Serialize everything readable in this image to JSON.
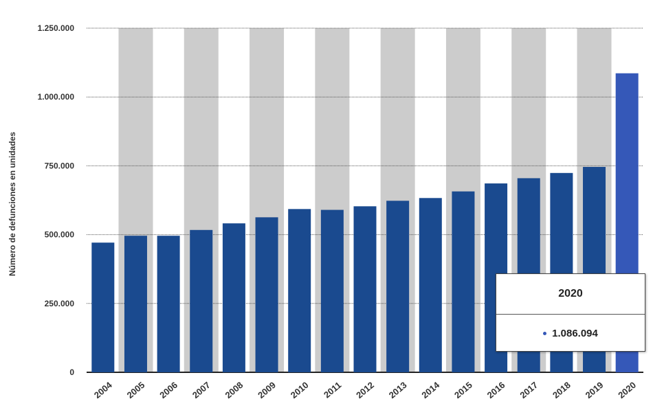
{
  "chart_data": {
    "type": "bar",
    "categories": [
      "2004",
      "2005",
      "2006",
      "2007",
      "2008",
      "2009",
      "2010",
      "2011",
      "2012",
      "2013",
      "2014",
      "2015",
      "2016",
      "2017",
      "2018",
      "2019",
      "2020"
    ],
    "series": [
      {
        "values": [
          471000,
          496000,
          496000,
          517000,
          541000,
          563000,
          593000,
          590000,
          603000,
          623000,
          633000,
          657000,
          686000,
          705000,
          724000,
          746000,
          1086094
        ]
      }
    ],
    "ylabel": "Número de defunciones en unidades",
    "xlabel": "",
    "ylim": [
      0,
      1250000
    ],
    "y_ticks": [
      {
        "value": 0,
        "label": "0"
      },
      {
        "value": 250000,
        "label": "250.000"
      },
      {
        "value": 500000,
        "label": "500.000"
      },
      {
        "value": 750000,
        "label": "750.000"
      },
      {
        "value": 1000000,
        "label": "1.000.000"
      },
      {
        "value": 1250000,
        "label": "1.250.000"
      }
    ],
    "grid": true,
    "highlighted_category": "2020",
    "colors": {
      "bar": "#1a4a8f",
      "bar_highlight": "#3558b8",
      "band": "#cccccc",
      "grid": "#555555"
    },
    "tooltip": {
      "title": "2020",
      "value_label": "1.086.094"
    }
  }
}
